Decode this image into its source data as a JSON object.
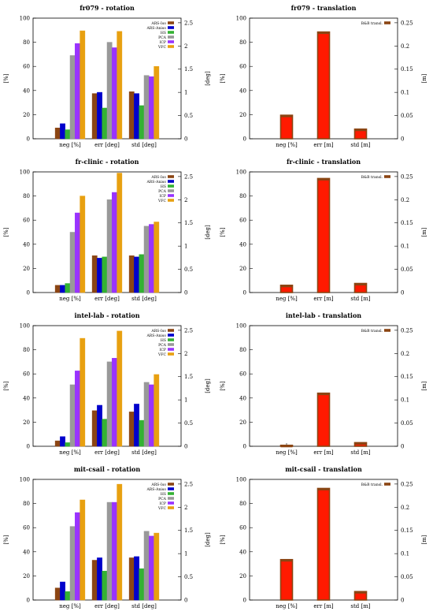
{
  "chart_data": [
    {
      "type": "bar",
      "title": "fr079 - rotation",
      "ylabel": "[%]",
      "y2label": "[deg]",
      "ylim": [
        0,
        100
      ],
      "y2lim": [
        0,
        2.6
      ],
      "yticks": [
        "0",
        "20",
        "40",
        "60",
        "80",
        "100"
      ],
      "y2ticks": [
        "0",
        "0.5",
        "1",
        "1.5",
        "2",
        "2.5"
      ],
      "categories": [
        "neg [%]",
        "err [deg]",
        "std [deg]"
      ],
      "legend_position": "top-right",
      "series": [
        {
          "name": "ARS-Iso",
          "color": "#8b4513",
          "values": [
            9,
            37.5,
            39
          ]
        },
        {
          "name": "ARS-Aniso",
          "color": "#0000cc",
          "values": [
            12.5,
            38.5,
            37.5
          ]
        },
        {
          "name": "HS",
          "color": "#33b233",
          "values": [
            7.5,
            25.5,
            27.5
          ]
        },
        {
          "name": "PCA",
          "color": "#999999",
          "values": [
            69,
            80,
            52.5
          ]
        },
        {
          "name": "ICP",
          "color": "#9933ff",
          "values": [
            79,
            75.5,
            51.5
          ]
        },
        {
          "name": "VFC",
          "color": "#e8a010",
          "values": [
            89.5,
            89,
            60
          ]
        }
      ]
    },
    {
      "type": "bar",
      "title": "fr079 - translation",
      "ylabel": "[%]",
      "y2label": "[m]",
      "ylim": [
        0,
        100
      ],
      "y2lim": [
        0,
        0.26
      ],
      "yticks": [
        "0",
        "20",
        "40",
        "60",
        "80",
        "100"
      ],
      "y2ticks": [
        "0",
        "0.05",
        "0.1",
        "0.15",
        "0.2",
        "0.25"
      ],
      "categories": [
        "neg [%]",
        "err [m]",
        "std [m]"
      ],
      "legend_position": "top-right",
      "series": [
        {
          "name": "B&B transl.",
          "color": "#8b4513",
          "values": [
            19.5,
            88.5,
            8
          ]
        }
      ]
    },
    {
      "type": "bar",
      "title": "fr-clinic - rotation",
      "ylabel": "[%]",
      "y2label": "[deg]",
      "ylim": [
        0,
        100
      ],
      "y2lim": [
        0,
        2.6
      ],
      "yticks": [
        "0",
        "20",
        "40",
        "60",
        "80",
        "100"
      ],
      "y2ticks": [
        "0",
        "0.5",
        "1",
        "1.5",
        "2",
        "2.5"
      ],
      "categories": [
        "neg [%]",
        "err [deg]",
        "std [deg]"
      ],
      "legend_position": "top-right",
      "series": [
        {
          "name": "ARS-Iso",
          "color": "#8b4513",
          "values": [
            6,
            30.5,
            30.5
          ]
        },
        {
          "name": "ARS-Aniso",
          "color": "#0000cc",
          "values": [
            6,
            28.5,
            29.5
          ]
        },
        {
          "name": "HS",
          "color": "#33b233",
          "values": [
            7.5,
            29.5,
            31.5
          ]
        },
        {
          "name": "PCA",
          "color": "#999999",
          "values": [
            50,
            77,
            55
          ]
        },
        {
          "name": "ICP",
          "color": "#9933ff",
          "values": [
            66,
            83,
            56.5
          ]
        },
        {
          "name": "VFC",
          "color": "#e8a010",
          "values": [
            80,
            99,
            58.5
          ]
        }
      ]
    },
    {
      "type": "bar",
      "title": "fr-clinic - translation",
      "ylabel": "[%]",
      "y2label": "[m]",
      "ylim": [
        0,
        100
      ],
      "y2lim": [
        0,
        0.26
      ],
      "yticks": [
        "0",
        "20",
        "40",
        "60",
        "80",
        "100"
      ],
      "y2ticks": [
        "0",
        "0.05",
        "0.1",
        "0.15",
        "0.2",
        "0.25"
      ],
      "categories": [
        "neg [%]",
        "err [m]",
        "std [m]"
      ],
      "legend_position": "top-right",
      "series": [
        {
          "name": "B&B transl.",
          "color": "#8b4513",
          "values": [
            6,
            94.5,
            7.5
          ]
        }
      ]
    },
    {
      "type": "bar",
      "title": "intel-lab - rotation",
      "ylabel": "[%]",
      "y2label": "[deg]",
      "ylim": [
        0,
        100
      ],
      "y2lim": [
        0,
        2.6
      ],
      "yticks": [
        "0",
        "20",
        "40",
        "60",
        "80",
        "100"
      ],
      "y2ticks": [
        "0",
        "0.5",
        "1",
        "1.5",
        "2",
        "2.5"
      ],
      "categories": [
        "neg [%]",
        "err [deg]",
        "std [deg]"
      ],
      "legend_position": "top-right",
      "series": [
        {
          "name": "ARS-Iso",
          "color": "#8b4513",
          "values": [
            4.5,
            29.5,
            28.5
          ]
        },
        {
          "name": "ARS-Aniso",
          "color": "#0000cc",
          "values": [
            8,
            34,
            35
          ]
        },
        {
          "name": "HS",
          "color": "#33b233",
          "values": [
            3,
            22.5,
            21.5
          ]
        },
        {
          "name": "PCA",
          "color": "#999999",
          "values": [
            51,
            70,
            53
          ]
        },
        {
          "name": "ICP",
          "color": "#9933ff",
          "values": [
            62.5,
            73,
            51
          ]
        },
        {
          "name": "VFC",
          "color": "#e8a010",
          "values": [
            89.5,
            95.5,
            59.5
          ]
        }
      ]
    },
    {
      "type": "bar",
      "title": "intel-lab - translation",
      "ylabel": "[%]",
      "y2label": "[m]",
      "ylim": [
        0,
        100
      ],
      "y2lim": [
        0,
        0.26
      ],
      "yticks": [
        "0",
        "20",
        "40",
        "60",
        "80",
        "100"
      ],
      "y2ticks": [
        "0",
        "0.05",
        "0.1",
        "0.15",
        "0.2",
        "0.25"
      ],
      "categories": [
        "neg [%]",
        "err [m]",
        "std [m]"
      ],
      "legend_position": "top-right",
      "series": [
        {
          "name": "B&B transl.",
          "color": "#8b4513",
          "values": [
            0.8,
            44,
            3
          ]
        }
      ]
    },
    {
      "type": "bar",
      "title": "mit-csail - rotation",
      "ylabel": "[%]",
      "y2label": "[deg]",
      "ylim": [
        0,
        100
      ],
      "y2lim": [
        0,
        2.6
      ],
      "yticks": [
        "0",
        "20",
        "40",
        "60",
        "80",
        "100"
      ],
      "y2ticks": [
        "0",
        "0.5",
        "1",
        "1.5",
        "2",
        "2.5"
      ],
      "categories": [
        "neg [%]",
        "err [deg]",
        "std [deg]"
      ],
      "legend_position": "top-right",
      "series": [
        {
          "name": "ARS-Iso",
          "color": "#8b4513",
          "values": [
            10,
            33,
            35
          ]
        },
        {
          "name": "ARS-Aniso",
          "color": "#0000cc",
          "values": [
            15,
            35,
            36
          ]
        },
        {
          "name": "HS",
          "color": "#33b233",
          "values": [
            7,
            24,
            26
          ]
        },
        {
          "name": "PCA",
          "color": "#999999",
          "values": [
            61,
            81,
            57
          ]
        },
        {
          "name": "ICP",
          "color": "#9933ff",
          "values": [
            72.5,
            81,
            53
          ]
        },
        {
          "name": "VFC",
          "color": "#e8a010",
          "values": [
            83,
            96,
            55.5
          ]
        }
      ]
    },
    {
      "type": "bar",
      "title": "mit-csail - translation",
      "ylabel": "[%]",
      "y2label": "[m]",
      "ylim": [
        0,
        100
      ],
      "y2lim": [
        0,
        0.26
      ],
      "yticks": [
        "0",
        "20",
        "40",
        "60",
        "80",
        "100"
      ],
      "y2ticks": [
        "0",
        "0.05",
        "0.1",
        "0.15",
        "0.2",
        "0.25"
      ],
      "categories": [
        "neg [%]",
        "err [m]",
        "std [m]"
      ],
      "legend_position": "top-right",
      "series": [
        {
          "name": "B&B transl.",
          "color": "#8b4513",
          "values": [
            33.5,
            92.5,
            7
          ]
        }
      ]
    }
  ]
}
